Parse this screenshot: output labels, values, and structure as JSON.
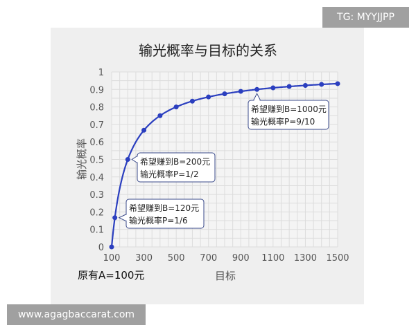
{
  "watermark_top": "TG: MYYJJPP",
  "watermark_bottom": "www.agagbaccarat.com",
  "chart_data": {
    "type": "line",
    "title": "输光概率与目标的关系",
    "xlabel": "目标",
    "ylabel": "输光概率",
    "xlim": [
      100,
      1500
    ],
    "ylim": [
      0,
      1
    ],
    "xticks": [
      100,
      300,
      500,
      700,
      900,
      1100,
      1300,
      1500
    ],
    "yticks": [
      0,
      0.1,
      0.2,
      0.3,
      0.4,
      0.5,
      0.6,
      0.7,
      0.8,
      0.9,
      1
    ],
    "ytick_labels": [
      "0",
      "0.1",
      "0.2",
      "0.3",
      "0.4",
      "0.5",
      "0.6",
      "0.7",
      "0.8",
      "0.9",
      "1"
    ],
    "grid": true,
    "color": "#2b3fbf",
    "x": [
      100,
      120,
      200,
      300,
      400,
      500,
      600,
      700,
      800,
      900,
      1000,
      1100,
      1200,
      1300,
      1400,
      1500
    ],
    "y": [
      0,
      0.167,
      0.5,
      0.667,
      0.75,
      0.8,
      0.833,
      0.857,
      0.875,
      0.889,
      0.9,
      0.909,
      0.917,
      0.923,
      0.929,
      0.933
    ],
    "note": "原有A=100元",
    "annotations": [
      {
        "x": 120,
        "y": 0.167,
        "line1": "希望赚到B=120元",
        "line2": "输光概率P=1/6"
      },
      {
        "x": 200,
        "y": 0.5,
        "line1": "希望赚到B=200元",
        "line2": "输光概率P=1/2"
      },
      {
        "x": 1000,
        "y": 0.9,
        "line1": "希望赚到B=1000元",
        "line2": "输光概率P=9/10"
      }
    ]
  }
}
